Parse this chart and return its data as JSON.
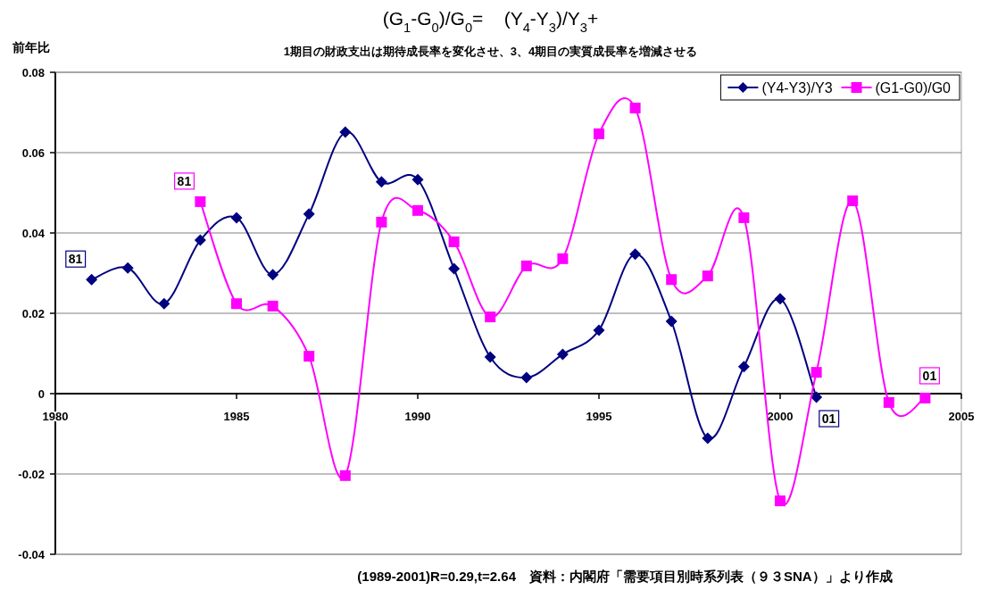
{
  "chart_data": {
    "type": "line",
    "title": "(G$_{1}$-G$_{0}$)/G$_{0}$=    (Y$_{4}$-Y$_{3}$)/Y$_{3}$+",
    "subtitle": "1期目の財政支出は期待成長率を変化させ、3、4期目の実質成長率を増減させる",
    "ylabel": "前年比",
    "xlim": [
      1980,
      2005
    ],
    "xticks": [
      1980,
      1985,
      1990,
      1995,
      2000,
      2005
    ],
    "ylim": [
      -0.04,
      0.08
    ],
    "yticks": [
      -0.04,
      -0.02,
      0,
      0.02,
      0.04,
      0.06,
      0.08
    ],
    "grid": "y",
    "legend": "top right",
    "series": [
      {
        "name": "(Y4-Y3)/Y3",
        "color": "#000080",
        "marker": "diamond",
        "x": [
          1981,
          1982,
          1983,
          1984,
          1985,
          1986,
          1987,
          1988,
          1989,
          1990,
          1991,
          1992,
          1993,
          1994,
          1995,
          1996,
          1997,
          1998,
          1999,
          2000,
          2001
        ],
        "values": [
          0.0284,
          0.0313,
          0.0224,
          0.0382,
          0.0438,
          0.0296,
          0.0447,
          0.0651,
          0.0527,
          0.0533,
          0.0311,
          0.0091,
          0.004,
          0.0098,
          0.0158,
          0.0347,
          0.018,
          -0.0111,
          0.0067,
          0.0236,
          -0.0009
        ]
      },
      {
        "name": "(G1-G0)/G0",
        "color": "#ff00ff",
        "marker": "square",
        "x": [
          1984,
          1985,
          1986,
          1987,
          1988,
          1989,
          1990,
          1991,
          1992,
          1993,
          1994,
          1995,
          1996,
          1997,
          1998,
          1999,
          2000,
          2001,
          2002,
          2003,
          2004
        ],
        "values": [
          0.0478,
          0.0224,
          0.0218,
          0.0093,
          -0.0204,
          0.0427,
          0.0456,
          0.0378,
          0.0191,
          0.0318,
          0.0336,
          0.0647,
          0.0711,
          0.0284,
          0.0293,
          0.0438,
          -0.0267,
          0.0053,
          0.048,
          -0.0022,
          -0.0011
        ]
      }
    ],
    "annotations": [
      {
        "text": "81",
        "x": 1981,
        "y": 0.0284
      },
      {
        "text": "81",
        "x": 1984,
        "y": 0.0478
      },
      {
        "text": "01",
        "x": 2001,
        "y": -0.0009
      },
      {
        "text": "01",
        "x": 2004,
        "y": -0.0011
      },
      "(1989-2001)R=0.29,t=2.64　資料：内閣府「需要項目別時系列表（９３SNA）」より作成"
    ]
  }
}
